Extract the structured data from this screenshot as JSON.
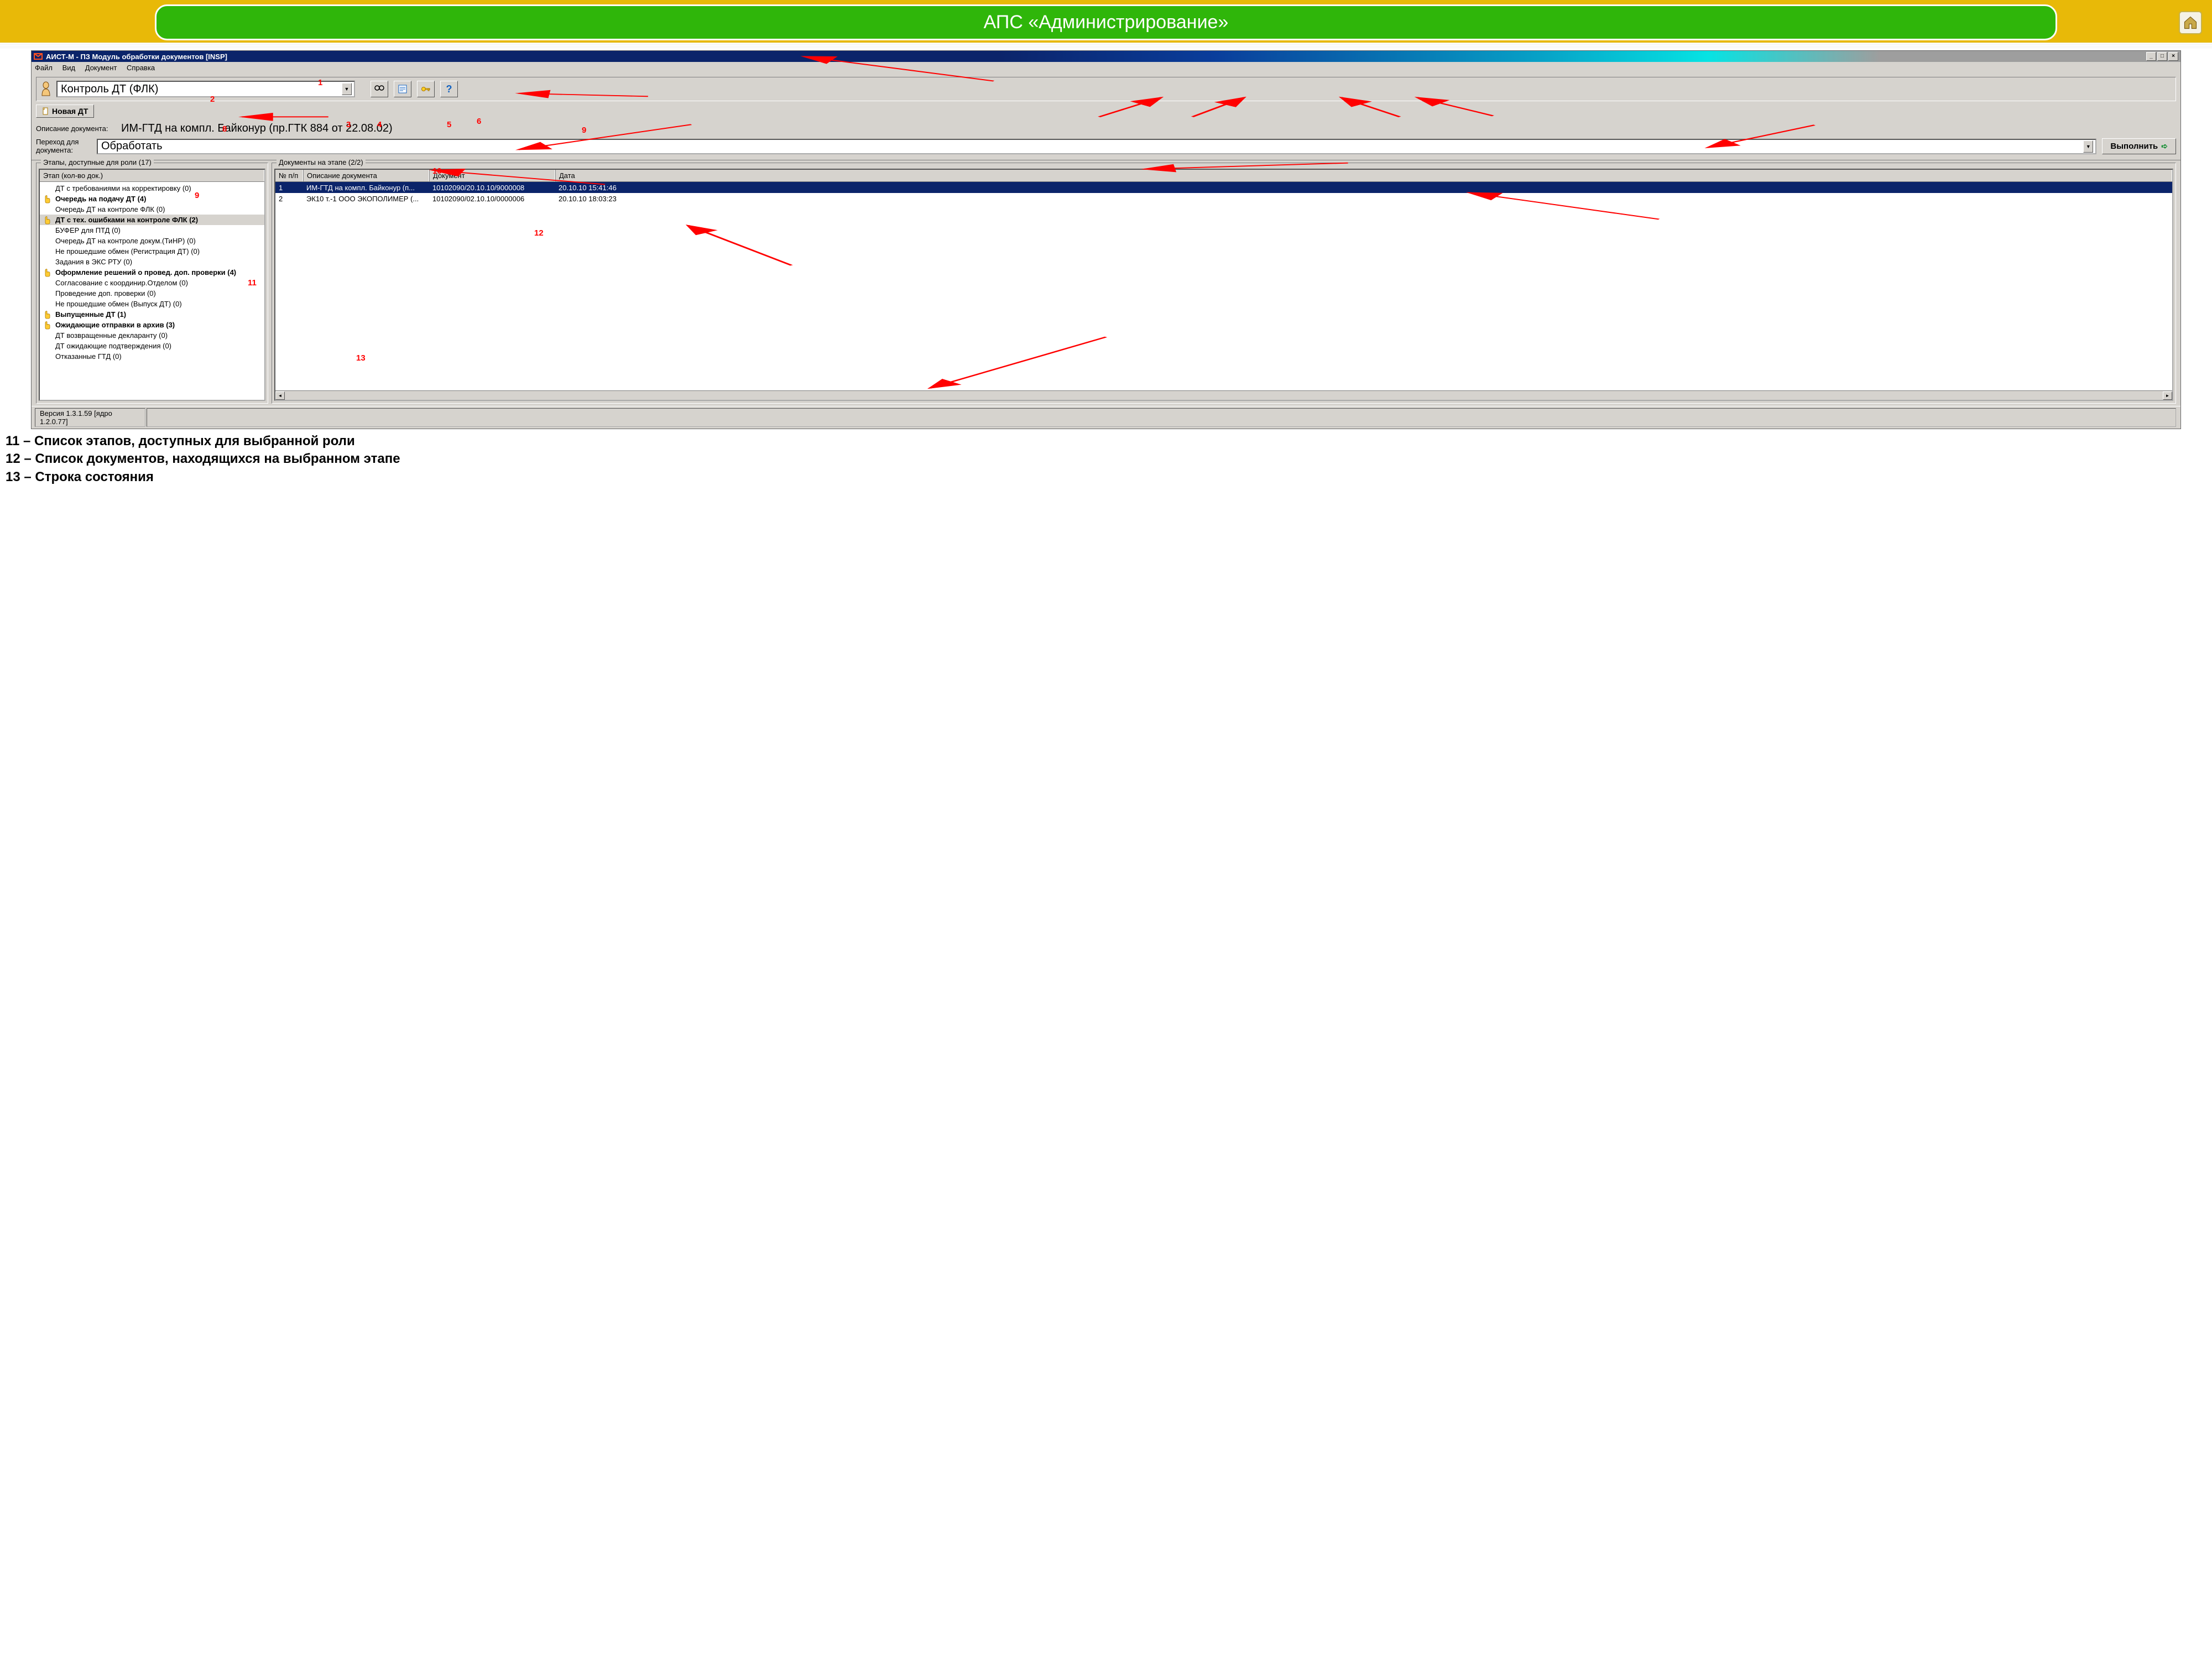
{
  "slide": {
    "title": "АПС «Администрирование»"
  },
  "window": {
    "title": "АИСТ-М - ПЗ Модуль обработки документов [INSP]"
  },
  "menu": {
    "file": "Файл",
    "view": "Вид",
    "document": "Документ",
    "help": "Справка"
  },
  "toolbar": {
    "role_value": "Контроль ДТ (ФЛК)",
    "new_dt": "Новая ДТ"
  },
  "doc_description": {
    "label": "Описание документа:",
    "value": "ИМ-ГТД на компл. Байконур (пр.ГТК 884 от 22.08.02)"
  },
  "transition": {
    "label": "Переход для документа:",
    "value": "Обработать",
    "execute": "Выполнить"
  },
  "left_pane": {
    "title": "Этапы, доступные для роли (17)",
    "col_header": "Этап (кол-во док.)",
    "items": [
      {
        "label": "ДТ с требованиями на корректировку (0)",
        "bold": false,
        "icon": false
      },
      {
        "label": "Очередь на подачу ДТ (4)",
        "bold": true,
        "icon": true
      },
      {
        "label": "Очередь ДТ на контроле ФЛК (0)",
        "bold": false,
        "icon": false
      },
      {
        "label": "ДТ с тех. ошибками на контроле ФЛК (2)",
        "bold": true,
        "icon": true,
        "selected": true
      },
      {
        "label": "БУФЕР для ПТД (0)",
        "bold": false,
        "icon": false
      },
      {
        "label": "Очередь ДТ на контроле докум.(ТиНР) (0)",
        "bold": false,
        "icon": false
      },
      {
        "label": "Не прошедшие обмен (Регистрация ДТ) (0)",
        "bold": false,
        "icon": false
      },
      {
        "label": "Задания в ЭКС РТУ (0)",
        "bold": false,
        "icon": false
      },
      {
        "label": "Оформление решений о провед. доп. проверки (4)",
        "bold": true,
        "icon": true
      },
      {
        "label": "Согласование с координир.Отделом (0)",
        "bold": false,
        "icon": false
      },
      {
        "label": "Проведение доп. проверки (0)",
        "bold": false,
        "icon": false
      },
      {
        "label": "Не прошедшие обмен (Выпуск ДТ) (0)",
        "bold": false,
        "icon": false
      },
      {
        "label": "Выпущенные ДТ (1)",
        "bold": true,
        "icon": true
      },
      {
        "label": "Ожидающие отправки в архив (3)",
        "bold": true,
        "icon": true
      },
      {
        "label": "ДТ возвращенные декларанту (0)",
        "bold": false,
        "icon": false
      },
      {
        "label": "ДТ ожидающие подтверждения (0)",
        "bold": false,
        "icon": false
      },
      {
        "label": "Отказанные ГТД (0)",
        "bold": false,
        "icon": false
      }
    ]
  },
  "right_pane": {
    "title": "Документы на этапе (2/2)",
    "cols": {
      "num": "№ п/п",
      "desc": "Описание документа",
      "doc": "Документ",
      "date": "Дата"
    },
    "rows": [
      {
        "num": "1",
        "desc": "ИМ-ГТД на компл. Байконур (п...",
        "doc": "10102090/20.10.10/9000008",
        "date": "20.10.10 15:41:46",
        "selected": true
      },
      {
        "num": "2",
        "desc": "ЭК10 т.-1 ООО ЭКОПОЛИМЕР (...",
        "doc": "10102090/02.10.10/0000006",
        "date": "20.10.10 18:03:23",
        "selected": false
      }
    ]
  },
  "statusbar": {
    "version": "Версия 1.3.1.59 [ядро 1.2.0.77]"
  },
  "annotations": {
    "n1": "1",
    "n2": "2",
    "n3": "3",
    "n4": "4",
    "n5": "5",
    "n6": "6",
    "n8": "8",
    "n9a": "9",
    "n9b": "9",
    "n10": "10",
    "n11": "11",
    "n12": "12",
    "n13": "13"
  },
  "captions": {
    "c11": "11 – Список этапов, доступных для выбранной роли",
    "c12": "12 – Список документов, находящихся на выбранном этапе",
    "c13": "13 – Строка состояния"
  },
  "colors": {
    "accent_green": "#2fb60a",
    "accent_yellow": "#e8b908",
    "annotation_red": "#ff0000",
    "win_gray": "#d6d3ce",
    "selection_blue": "#0b246a"
  }
}
